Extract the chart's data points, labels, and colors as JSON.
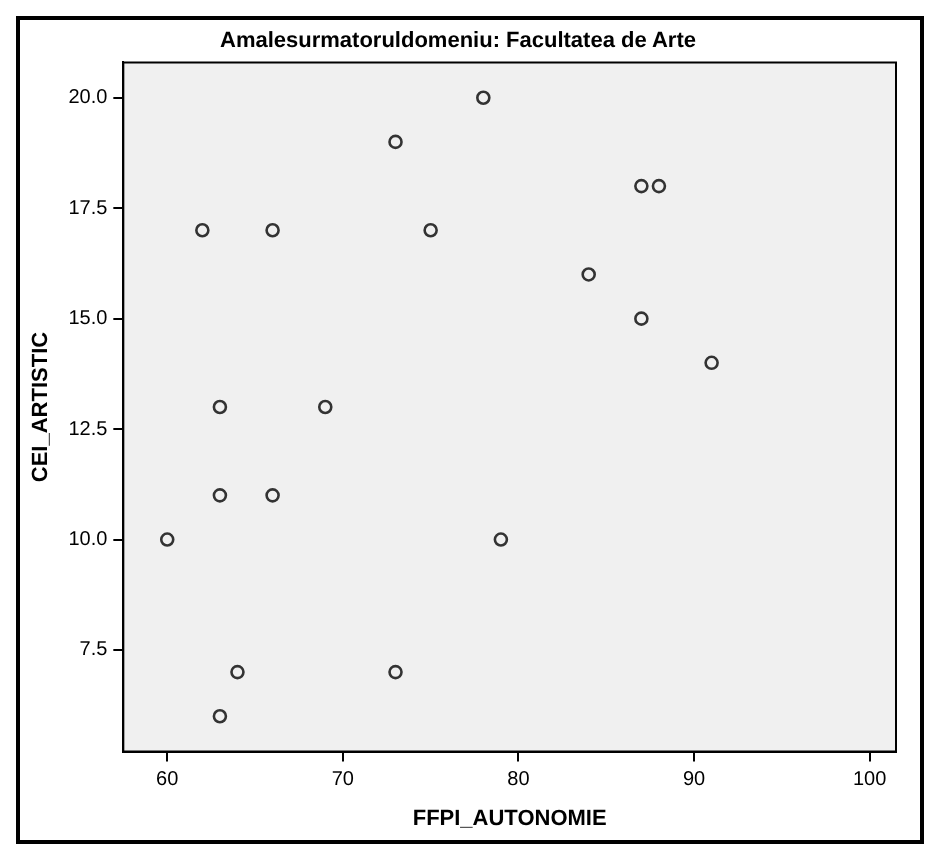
{
  "chart_data": {
    "type": "scatter",
    "title": "Amalesurmatoruldomeniu: Facultatea de Arte",
    "xlabel": "FFPI_AUTONOMIE",
    "ylabel": "CEI_ARTISTIC",
    "x": [
      78,
      73,
      87,
      88,
      62,
      66,
      75,
      84,
      87,
      91,
      63,
      69,
      63,
      66,
      60,
      79,
      64,
      73,
      63
    ],
    "values": [
      20,
      19,
      18,
      18,
      17,
      17,
      17,
      16,
      15,
      14,
      13,
      13,
      11,
      11,
      10,
      10,
      7,
      7,
      6
    ],
    "color": "#333333",
    "marker": "circle",
    "grid": false,
    "xlim": [
      57.5,
      101.5
    ],
    "xticks": [
      60,
      70,
      80,
      90,
      100
    ],
    "ylim": [
      5.2,
      20.8
    ],
    "yticks": [
      {
        "value": 7.5,
        "label": "7.5"
      },
      {
        "value": 10,
        "label": "10.0"
      },
      {
        "value": 12.5,
        "label": "12.5"
      },
      {
        "value": 15,
        "label": "15.0"
      },
      {
        "value": 17.5,
        "label": "17.5"
      },
      {
        "value": 20,
        "label": "20.0"
      }
    ]
  }
}
